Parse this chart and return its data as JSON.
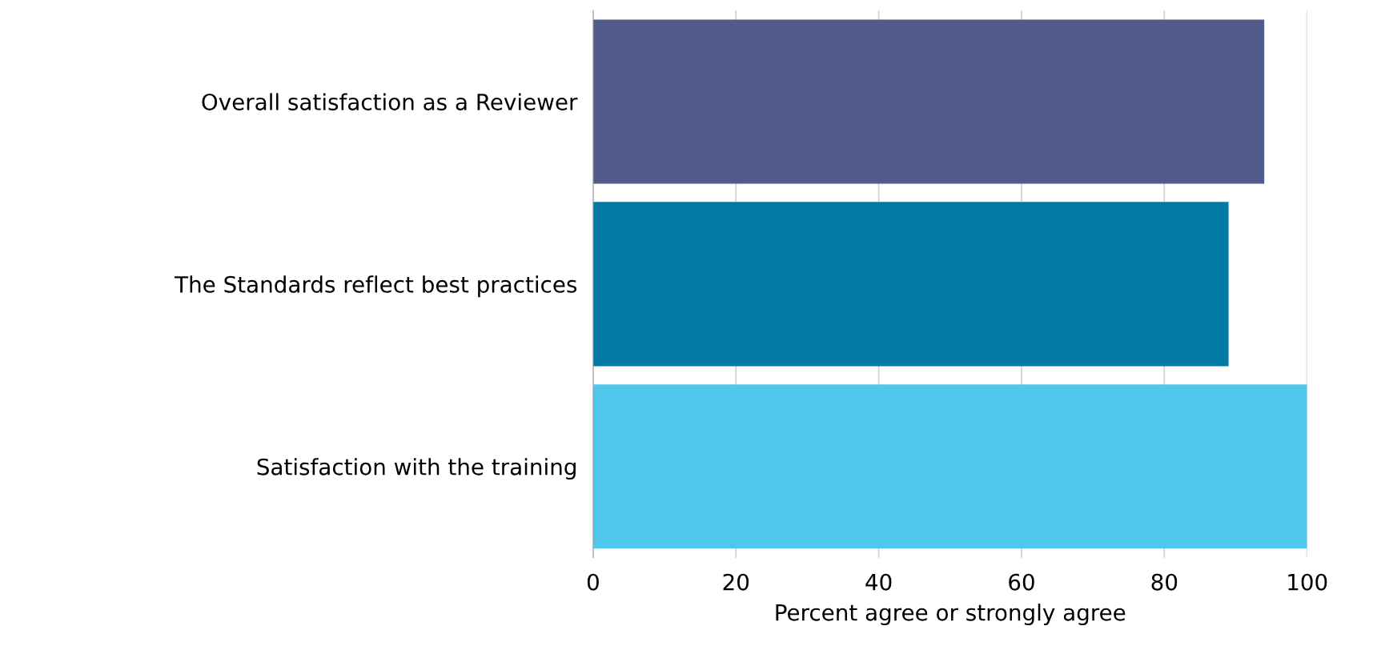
{
  "chart_data": {
    "type": "bar",
    "orientation": "horizontal",
    "categories": [
      "Overall satisfaction as a Reviewer",
      "The Standards reflect best practices",
      "Satisfaction with the training"
    ],
    "values": [
      94,
      89,
      100
    ],
    "colors": [
      "#525c8a",
      "#037aa3",
      "#50c6ec"
    ],
    "xlabel": "Percent agree or strongly agree",
    "xlim": [
      0,
      100
    ],
    "xticks": [
      0,
      20,
      40,
      60,
      80,
      100
    ],
    "grid": "x",
    "legend": false
  }
}
